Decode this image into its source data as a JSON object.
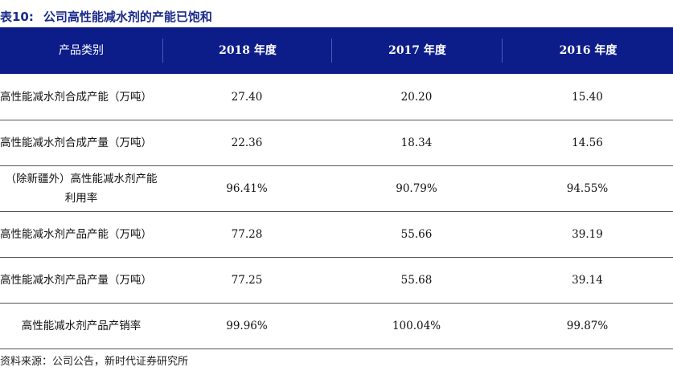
{
  "title": {
    "number": "表10:",
    "text": "公司高性能减水剂的产能已饱和"
  },
  "header": [
    "产品类别",
    "2018 年度",
    "2017 年度",
    "2016 年度"
  ],
  "rows": [
    {
      "label": "高性能减水剂合成产能（万吨）",
      "values": [
        "27.40",
        "20.20",
        "15.40"
      ]
    },
    {
      "label": "高性能减水剂合成产量（万吨）",
      "values": [
        "22.36",
        "18.34",
        "14.56"
      ]
    },
    {
      "label_lines": [
        "（除新疆外）高性能减水剂产能",
        "利用率"
      ],
      "values": [
        "96.41%",
        "90.79%",
        "94.55%"
      ]
    },
    {
      "label": "高性能减水剂产品产能（万吨）",
      "values": [
        "77.28",
        "55.66",
        "39.19"
      ]
    },
    {
      "label": "高性能减水剂产品产量（万吨）",
      "values": [
        "77.25",
        "55.68",
        "39.14"
      ]
    },
    {
      "label": "高性能减水剂产品产销率",
      "values": [
        "99.96%",
        "100.04%",
        "99.87%"
      ]
    }
  ],
  "source": "资料来源：公司公告，新时代证券研究所",
  "colors": {
    "header_bg": "#0c1d8a",
    "title": "#1a2a8c"
  }
}
